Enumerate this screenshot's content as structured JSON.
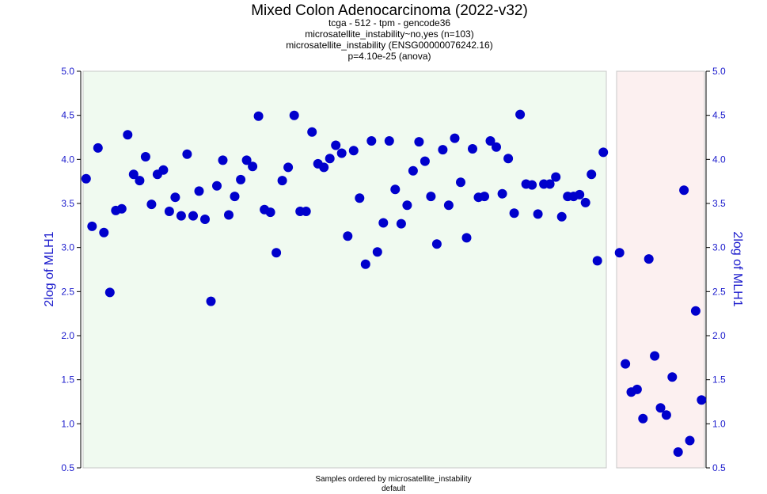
{
  "chart_data": {
    "type": "scatter",
    "title": "Mixed Colon Adenocarcinoma (2022-v32)",
    "subtitle_lines": [
      "tcga - 512 - tpm - gencode36",
      "microsatellite_instability~no,yes (n=103)",
      "microsatellite_instability (ENSG00000076242.16)",
      "p=4.10e-25 (anova)"
    ],
    "ylabel": "2log of MLH1",
    "xlabel": "Samples ordered by microsatellite_instability",
    "xlabel_sub": "default",
    "ylim": [
      0.5,
      5.0
    ],
    "yticks": [
      "0.5",
      "1.0",
      "1.5",
      "2.0",
      "2.5",
      "3.0",
      "3.5",
      "4.0",
      "4.5",
      "5.0"
    ],
    "point_color": "#0000cc",
    "groups": [
      {
        "background": "#f0faf0",
        "values": [
          3.78,
          3.24,
          4.13,
          3.17,
          2.49,
          3.42,
          3.44,
          4.28,
          3.83,
          3.76,
          4.03,
          3.49,
          3.83,
          3.88,
          3.41,
          3.57,
          3.36,
          4.06,
          3.36,
          3.64,
          3.32,
          2.39,
          3.7,
          3.99,
          3.37,
          3.58,
          3.77,
          3.99,
          3.92,
          4.49,
          3.43,
          3.4,
          2.94,
          3.76,
          3.91,
          4.5,
          3.41,
          3.41,
          4.31,
          3.95,
          3.91,
          4.01,
          4.16,
          4.07,
          3.13,
          4.1,
          3.56,
          2.81,
          4.21,
          2.95,
          3.28,
          4.21,
          3.66,
          3.27,
          3.48,
          3.87,
          4.2,
          3.98,
          3.58,
          3.04,
          4.11,
          3.48,
          4.24,
          3.74,
          3.11,
          4.12,
          3.57,
          3.58,
          4.21,
          4.14,
          3.61,
          4.01,
          3.39,
          4.51,
          3.72,
          3.71,
          3.38,
          3.72,
          3.72,
          3.8,
          3.35,
          3.58,
          3.58,
          3.6,
          3.51,
          3.83,
          2.85,
          4.08
        ]
      },
      {
        "background": "#fcf0f0",
        "values": [
          2.94,
          1.68,
          1.36,
          1.39,
          1.06,
          2.87,
          1.77,
          1.18,
          1.1,
          1.53,
          0.68,
          3.65,
          0.81,
          2.28,
          1.27
        ]
      }
    ]
  }
}
